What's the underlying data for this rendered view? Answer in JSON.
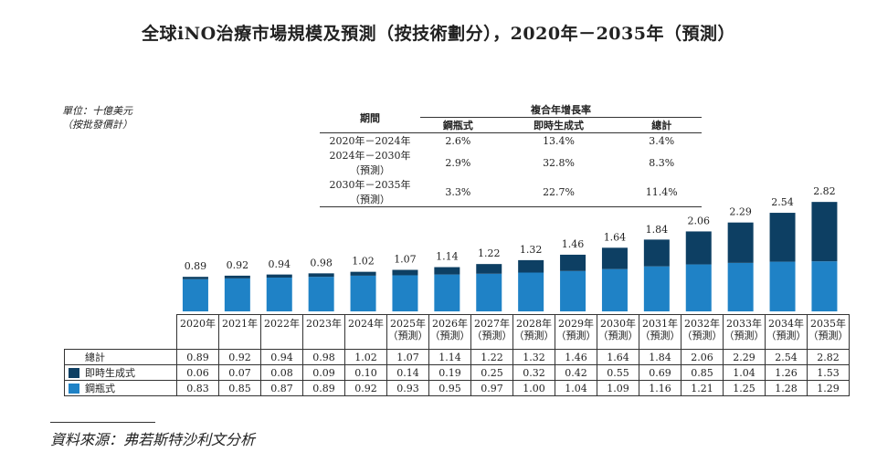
{
  "title": "全球iNO治療市場規模及預測（按技術劃分），2020年－2035年（預測）",
  "unit": [
    "單位：十億美元",
    "（按批發價計）"
  ],
  "cagr_table": {
    "period_header": "期間",
    "group_header": "複合年增長率",
    "columns": [
      "鋼瓶式",
      "即時生成式",
      "總計"
    ],
    "rows": [
      {
        "period": "2020年－2024年",
        "values": [
          "2.6%",
          "13.4%",
          "3.4%"
        ]
      },
      {
        "period": "2024年－2030年（預測）",
        "values": [
          "2.9%",
          "32.8%",
          "8.3%"
        ]
      },
      {
        "period": "2030年－2035年（預測）",
        "values": [
          "3.3%",
          "22.7%",
          "11.4%"
        ]
      }
    ]
  },
  "chart_data": {
    "type": "bar",
    "stacked": true,
    "categories": [
      "2020年",
      "2021年",
      "2022年",
      "2023年",
      "2024年",
      "2025年",
      "2026年",
      "2027年",
      "2028年",
      "2029年",
      "2030年",
      "2031年",
      "2032年",
      "2033年",
      "2034年",
      "2035年"
    ],
    "forecast_label": "（預測）",
    "forecast_from_index": 5,
    "total_label": "總計",
    "totals": [
      "0.89",
      "0.92",
      "0.94",
      "0.98",
      "1.02",
      "1.07",
      "1.14",
      "1.22",
      "1.32",
      "1.46",
      "1.64",
      "1.84",
      "2.06",
      "2.29",
      "2.54",
      "2.82"
    ],
    "series": [
      {
        "name": "即時生成式",
        "color": "#0d3f63",
        "values": [
          "0.06",
          "0.07",
          "0.08",
          "0.09",
          "0.10",
          "0.14",
          "0.19",
          "0.25",
          "0.32",
          "0.42",
          "0.55",
          "0.69",
          "0.85",
          "1.04",
          "1.26",
          "1.53"
        ]
      },
      {
        "name": "鋼瓶式",
        "color": "#1f82c6",
        "values": [
          "0.83",
          "0.85",
          "0.87",
          "0.89",
          "0.92",
          "0.93",
          "0.95",
          "0.97",
          "1.00",
          "1.04",
          "1.09",
          "1.16",
          "1.21",
          "1.25",
          "1.28",
          "1.29"
        ]
      }
    ],
    "ylim": [
      0,
      3
    ]
  },
  "source": "資料來源：弗若斯特沙利文分析"
}
